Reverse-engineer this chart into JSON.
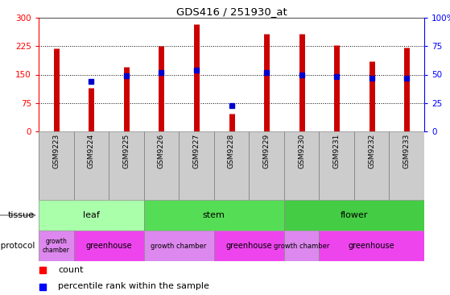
{
  "title": "GDS416 / 251930_at",
  "samples": [
    "GSM9223",
    "GSM9224",
    "GSM9225",
    "GSM9226",
    "GSM9227",
    "GSM9228",
    "GSM9229",
    "GSM9230",
    "GSM9231",
    "GSM9232",
    "GSM9233"
  ],
  "counts": [
    220,
    115,
    170,
    225,
    282,
    47,
    258,
    258,
    228,
    185,
    222
  ],
  "percentiles": [
    null,
    44,
    49,
    52,
    54,
    23,
    52,
    50,
    48,
    47,
    47
  ],
  "ylim_left": [
    0,
    300
  ],
  "ylim_right": [
    0,
    100
  ],
  "yticks_left": [
    0,
    75,
    150,
    225,
    300
  ],
  "yticks_right": [
    0,
    25,
    50,
    75,
    100
  ],
  "bar_color": "#cc0000",
  "dot_color": "#0000cc",
  "xlab_bg": "#cccccc",
  "tissue_spans": [
    {
      "label": "leaf",
      "start": 0,
      "end": 3,
      "color": "#aaffaa"
    },
    {
      "label": "stem",
      "start": 3,
      "end": 7,
      "color": "#55dd55"
    },
    {
      "label": "flower",
      "start": 7,
      "end": 11,
      "color": "#44cc44"
    }
  ],
  "growth_spans": [
    {
      "label": "growth\nchamber",
      "start": 0,
      "end": 1,
      "color": "#dd88ee",
      "fontsize": 5.5
    },
    {
      "label": "greenhouse",
      "start": 1,
      "end": 3,
      "color": "#ee44ee",
      "fontsize": 7
    },
    {
      "label": "growth chamber",
      "start": 3,
      "end": 5,
      "color": "#dd88ee",
      "fontsize": 6
    },
    {
      "label": "greenhouse",
      "start": 5,
      "end": 7,
      "color": "#ee44ee",
      "fontsize": 7
    },
    {
      "label": "growth chamber",
      "start": 7,
      "end": 8,
      "color": "#dd88ee",
      "fontsize": 6
    },
    {
      "label": "greenhouse",
      "start": 8,
      "end": 11,
      "color": "#ee44ee",
      "fontsize": 7
    }
  ],
  "legend_count": "count",
  "legend_pct": "percentile rank within the sample"
}
